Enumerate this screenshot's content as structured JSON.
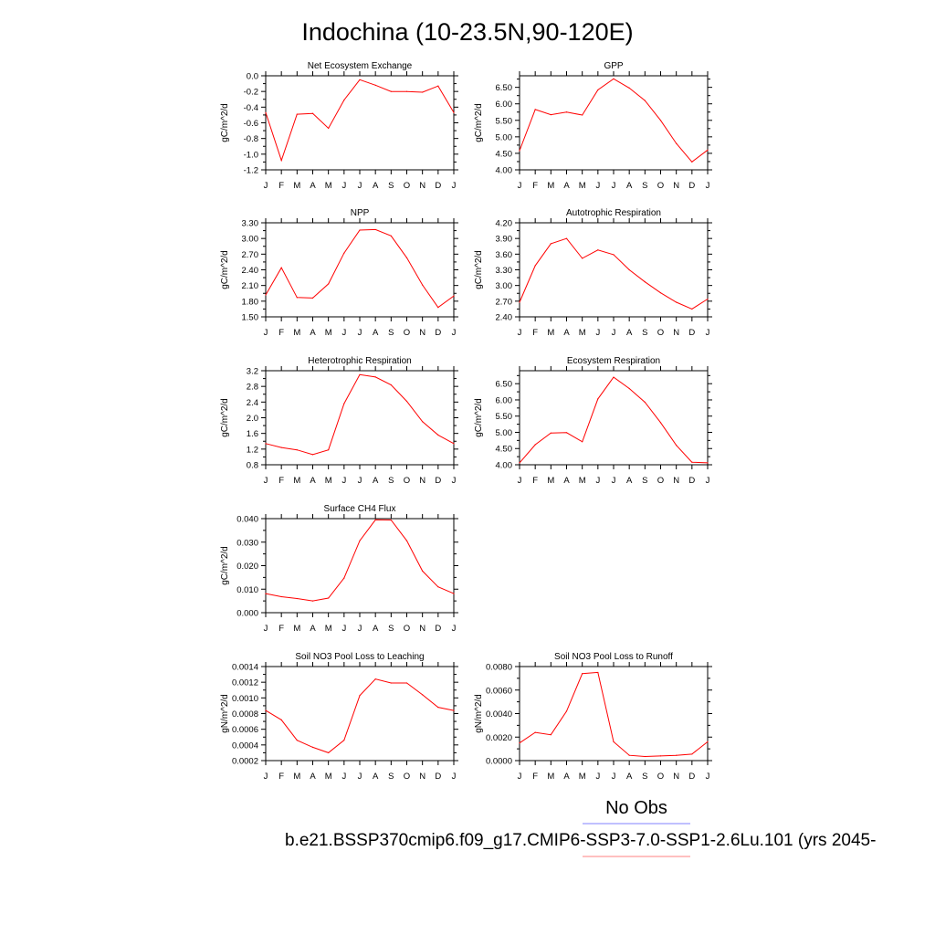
{
  "figure": {
    "title": "Indochina (10-23.5N,90-120E)",
    "legend_label": "No Obs",
    "caption": "b.e21.BSSP370cmip6.f09_g17.CMIP6-SSP3-7.0-SSP1-2.6Lu.101 (yrs 2045-",
    "obs_color": "#8080ff",
    "model_color": "#ff8080",
    "line_color": "#ff0000"
  },
  "chart_data": [
    {
      "type": "line",
      "title": "Net Ecosystem Exchange",
      "ylabel": "gC/m^2/d",
      "x": [
        "J",
        "F",
        "M",
        "A",
        "M",
        "J",
        "J",
        "A",
        "S",
        "O",
        "N",
        "D",
        "J"
      ],
      "ylim": [
        -1.2,
        0.0
      ],
      "yticks": [
        -1.2,
        -1.0,
        -0.8,
        -0.6,
        -0.4,
        -0.2,
        0.0
      ],
      "ytick_labels": [
        "-1.2",
        "-1.0",
        "-0.8",
        "-0.6",
        "-0.4",
        "-0.2",
        "0.0"
      ],
      "yminor": [
        -1.1,
        -0.9,
        -0.7,
        -0.5,
        -0.3,
        -0.1
      ],
      "values": [
        -0.47,
        -1.08,
        -0.49,
        -0.48,
        -0.67,
        -0.31,
        -0.05,
        -0.12,
        -0.2,
        -0.2,
        -0.21,
        -0.13,
        -0.47
      ]
    },
    {
      "type": "line",
      "title": "GPP",
      "ylabel": "gC/m^2/d",
      "x": [
        "J",
        "F",
        "M",
        "A",
        "M",
        "J",
        "J",
        "A",
        "S",
        "O",
        "N",
        "D",
        "J"
      ],
      "ylim": [
        4.0,
        6.85
      ],
      "yticks": [
        4.0,
        4.5,
        5.0,
        5.5,
        6.0,
        6.5
      ],
      "ytick_labels": [
        "4.00",
        "4.50",
        "5.00",
        "5.50",
        "6.00",
        "6.50"
      ],
      "yminor": [
        4.25,
        4.75,
        5.25,
        5.75,
        6.25,
        6.75
      ],
      "values": [
        4.58,
        5.83,
        5.67,
        5.75,
        5.66,
        6.42,
        6.76,
        6.48,
        6.1,
        5.5,
        4.8,
        4.24,
        4.6
      ]
    },
    {
      "type": "line",
      "title": "NPP",
      "ylabel": "gC/m^2/d",
      "x": [
        "J",
        "F",
        "M",
        "A",
        "M",
        "J",
        "J",
        "A",
        "S",
        "O",
        "N",
        "D",
        "J"
      ],
      "ylim": [
        1.5,
        3.3
      ],
      "yticks": [
        1.5,
        1.8,
        2.1,
        2.4,
        2.7,
        3.0,
        3.3
      ],
      "ytick_labels": [
        "1.50",
        "1.80",
        "2.10",
        "2.40",
        "2.70",
        "3.00",
        "3.30"
      ],
      "yminor": [
        1.65,
        1.95,
        2.25,
        2.55,
        2.85,
        3.15
      ],
      "values": [
        1.92,
        2.44,
        1.87,
        1.86,
        2.13,
        2.72,
        3.16,
        3.17,
        3.05,
        2.63,
        2.11,
        1.68,
        1.9
      ]
    },
    {
      "type": "line",
      "title": "Autotrophic Respiration",
      "ylabel": "gC/m^2/d",
      "x": [
        "J",
        "F",
        "M",
        "A",
        "M",
        "J",
        "J",
        "A",
        "S",
        "O",
        "N",
        "D",
        "J"
      ],
      "ylim": [
        2.4,
        4.2
      ],
      "yticks": [
        2.4,
        2.7,
        3.0,
        3.3,
        3.6,
        3.9,
        4.2
      ],
      "ytick_labels": [
        "2.40",
        "2.70",
        "3.00",
        "3.30",
        "3.60",
        "3.90",
        "4.20"
      ],
      "yminor": [
        2.55,
        2.85,
        3.15,
        3.45,
        3.75,
        4.05
      ],
      "values": [
        2.68,
        3.38,
        3.8,
        3.9,
        3.52,
        3.68,
        3.59,
        3.3,
        3.07,
        2.86,
        2.68,
        2.55,
        2.74
      ]
    },
    {
      "type": "line",
      "title": "Heterotrophic Respiration",
      "ylabel": "gC/m^2/d",
      "x": [
        "J",
        "F",
        "M",
        "A",
        "M",
        "J",
        "J",
        "A",
        "S",
        "O",
        "N",
        "D",
        "J"
      ],
      "ylim": [
        0.8,
        3.2
      ],
      "yticks": [
        0.8,
        1.2,
        1.6,
        2.0,
        2.4,
        2.8,
        3.2
      ],
      "ytick_labels": [
        "0.8",
        "1.2",
        "1.6",
        "2.0",
        "2.4",
        "2.8",
        "3.2"
      ],
      "yminor": [
        1.0,
        1.4,
        1.8,
        2.2,
        2.6,
        3.0
      ],
      "values": [
        1.34,
        1.24,
        1.18,
        1.06,
        1.18,
        2.36,
        3.1,
        3.04,
        2.84,
        2.42,
        1.9,
        1.56,
        1.34
      ]
    },
    {
      "type": "line",
      "title": "Ecosystem Respiration",
      "ylabel": "gC/m^2/d",
      "x": [
        "J",
        "F",
        "M",
        "A",
        "M",
        "J",
        "J",
        "A",
        "S",
        "O",
        "N",
        "D",
        "J"
      ],
      "ylim": [
        4.0,
        6.9
      ],
      "yticks": [
        4.0,
        4.5,
        5.0,
        5.5,
        6.0,
        6.5
      ],
      "ytick_labels": [
        "4.00",
        "4.50",
        "5.00",
        "5.50",
        "6.00",
        "6.50"
      ],
      "yminor": [
        4.25,
        4.75,
        5.25,
        5.75,
        6.25,
        6.75
      ],
      "values": [
        4.06,
        4.62,
        4.98,
        4.99,
        4.71,
        6.03,
        6.7,
        6.35,
        5.93,
        5.3,
        4.6,
        4.08,
        4.06
      ]
    },
    {
      "type": "line",
      "title": "Surface CH4 Flux",
      "ylabel": "gC/m^2/d",
      "x": [
        "J",
        "F",
        "M",
        "A",
        "M",
        "J",
        "J",
        "A",
        "S",
        "O",
        "N",
        "D",
        "J"
      ],
      "ylim": [
        0.0,
        0.04
      ],
      "yticks": [
        0.0,
        0.01,
        0.02,
        0.03,
        0.04
      ],
      "ytick_labels": [
        "0.000",
        "0.010",
        "0.020",
        "0.030",
        "0.040"
      ],
      "yminor": [
        0.005,
        0.015,
        0.025,
        0.035
      ],
      "values": [
        0.0081,
        0.0068,
        0.006,
        0.005,
        0.0062,
        0.0147,
        0.0306,
        0.0395,
        0.0394,
        0.0306,
        0.0177,
        0.011,
        0.0081
      ]
    },
    {
      "type": "line",
      "title": "Soil NO3 Pool Loss to Leaching",
      "ylabel": "gN/m^2/d",
      "x": [
        "J",
        "F",
        "M",
        "A",
        "M",
        "J",
        "J",
        "A",
        "S",
        "O",
        "N",
        "D",
        "J"
      ],
      "ylim": [
        0.0002,
        0.0014
      ],
      "yticks": [
        0.0002,
        0.0004,
        0.0006,
        0.0008,
        0.001,
        0.0012,
        0.0014
      ],
      "ytick_labels": [
        "0.0002",
        "0.0004",
        "0.0006",
        "0.0008",
        "0.0010",
        "0.0012",
        "0.0014"
      ],
      "yminor": [
        0.0003,
        0.0005,
        0.0007,
        0.0009,
        0.0011,
        0.0013
      ],
      "values": [
        0.00084,
        0.00072,
        0.00046,
        0.00037,
        0.0003,
        0.00046,
        0.00103,
        0.00124,
        0.00119,
        0.00119,
        0.00104,
        0.00088,
        0.00084
      ]
    },
    {
      "type": "line",
      "title": "Soil NO3 Pool Loss to Runoff",
      "ylabel": "gN/m^2/d",
      "x": [
        "J",
        "F",
        "M",
        "A",
        "M",
        "J",
        "J",
        "A",
        "S",
        "O",
        "N",
        "D",
        "J"
      ],
      "ylim": [
        0.0,
        0.008
      ],
      "yticks": [
        0.0,
        0.002,
        0.004,
        0.006,
        0.008
      ],
      "ytick_labels": [
        "0.0000",
        "0.0020",
        "0.0040",
        "0.0060",
        "0.0080"
      ],
      "yminor": [
        0.001,
        0.003,
        0.005,
        0.007
      ],
      "values": [
        0.0015,
        0.0024,
        0.0022,
        0.0042,
        0.0074,
        0.0075,
        0.0016,
        0.00045,
        0.00035,
        0.0004,
        0.00045,
        0.00055,
        0.0016
      ]
    }
  ]
}
